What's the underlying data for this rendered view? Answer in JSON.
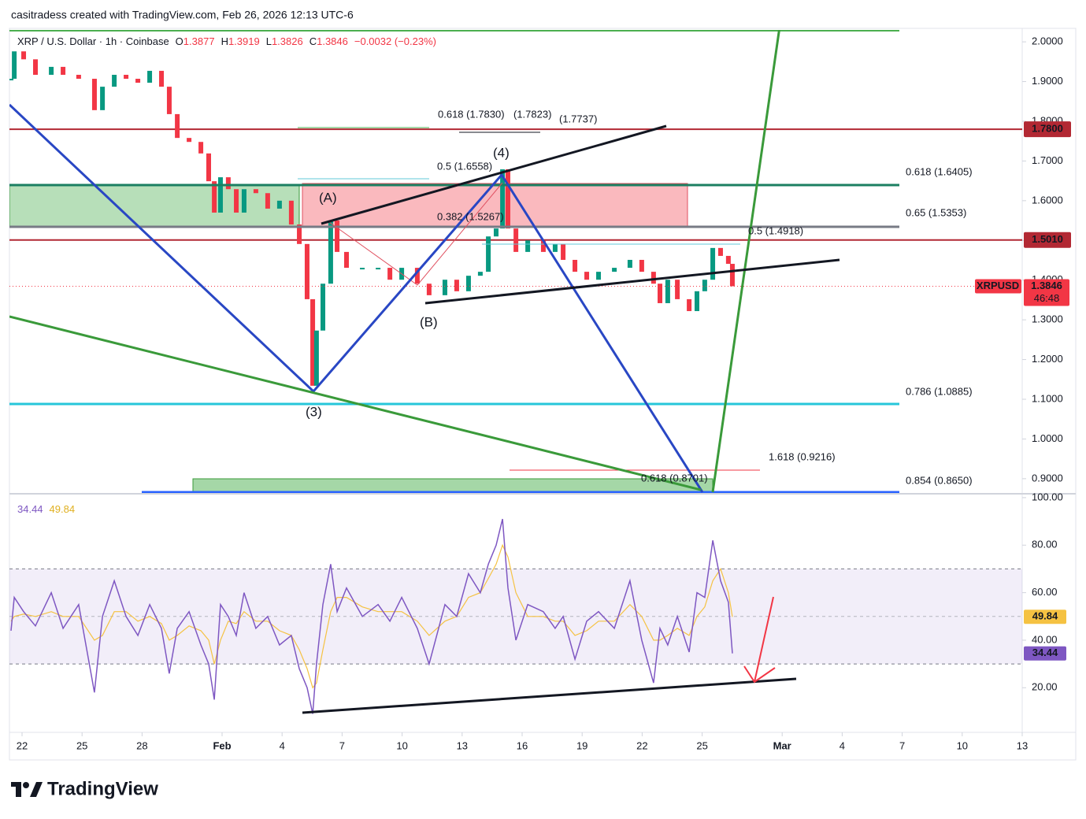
{
  "header": "casitradess created with TradingView.com, Feb 26, 2026 12:13 UTC-6",
  "brand": "TradingView",
  "chart_data": [
    {
      "type": "candlestick",
      "title": "XRP / U.S. Dollar · 1h · Coinbase",
      "ohlc_labels": [
        "O",
        "H",
        "L",
        "C"
      ],
      "ohlc": [
        1.3877,
        1.3919,
        1.3826,
        1.3846
      ],
      "change": "−0.0032 (−0.23%)",
      "symbol": "XRPUSD",
      "countdown": "46:48",
      "up_color": "#089981",
      "down_color": "#f23645",
      "x": [
        -0.55,
        -0.39,
        0.08,
        0.67,
        1.46,
        2.05,
        2.83,
        3.62,
        4.02,
        4.61,
        5.2,
        5.79,
        6.38,
        6.97,
        7.36,
        7.76,
        8.35,
        8.94,
        9.33,
        9.61,
        9.92,
        10.31,
        10.71,
        11.1,
        11.69,
        12.28,
        12.87,
        13.46,
        13.86,
        14.25,
        14.53,
        14.72,
        15.04,
        15.43,
        15.75,
        16.22,
        17.01,
        17.8,
        18.39,
        18.98,
        19.76,
        20.35,
        21.14,
        21.73,
        22.32,
        22.91,
        23.31,
        23.7,
        24.02,
        24.29,
        24.69,
        25.28,
        26.06,
        26.65,
        27.05,
        27.64,
        28.23,
        28.82,
        29.61,
        30.39,
        30.98,
        31.57,
        31.89,
        32.28,
        32.76,
        33.35,
        33.74,
        34.13,
        34.53,
        34.92,
        35.31,
        35.51
      ],
      "series": [
        {
          "values": [
            1.907,
            1.976,
            1.956,
            1.917,
            1.937,
            1.917,
            1.907,
            1.828,
            1.887,
            1.917,
            1.907,
            1.897,
            1.927,
            1.887,
            1.818,
            1.758,
            1.748,
            1.719,
            1.649,
            1.57,
            1.659,
            1.629,
            1.57,
            1.629,
            1.619,
            1.58,
            1.6,
            1.54,
            1.491,
            1.352,
            1.134,
            1.273,
            1.391,
            1.55,
            1.471,
            1.431,
            1.431,
            1.431,
            1.401,
            1.431,
            1.391,
            1.362,
            1.401,
            1.372,
            1.411,
            1.421,
            1.51,
            1.53,
            1.679,
            1.53,
            1.471,
            1.5,
            1.471,
            1.491,
            1.451,
            1.421,
            1.401,
            1.421,
            1.431,
            1.451,
            1.421,
            1.391,
            1.342,
            1.401,
            1.352,
            1.322,
            1.372,
            1.401,
            1.481,
            1.461,
            1.441,
            1.3846
          ]
        }
      ],
      "levels": [
        {
          "value": 1.78,
          "label": "1.7800",
          "color": "#b22833"
        },
        {
          "value": 1.501,
          "label": "1.5010",
          "color": "#b22833"
        }
      ],
      "xlim": [
        -0.63,
        50
      ],
      "xticks": [
        {
          "value": 0,
          "label": "22"
        },
        {
          "value": 3,
          "label": "25"
        },
        {
          "value": 6,
          "label": "28"
        },
        {
          "value": 10,
          "label": "Feb"
        },
        {
          "value": 13,
          "label": "4"
        },
        {
          "value": 16,
          "label": "7"
        },
        {
          "value": 19,
          "label": "10"
        },
        {
          "value": 22,
          "label": "13"
        },
        {
          "value": 25,
          "label": "16"
        },
        {
          "value": 28,
          "label": "19"
        },
        {
          "value": 31,
          "label": "22"
        },
        {
          "value": 34,
          "label": "25"
        },
        {
          "value": 38,
          "label": "Mar"
        },
        {
          "value": 41,
          "label": "4"
        },
        {
          "value": 44,
          "label": "7"
        },
        {
          "value": 47,
          "label": "10"
        },
        {
          "value": 50,
          "label": "13"
        }
      ],
      "ylim": [
        0.866,
        2.03
      ],
      "yticks": [
        {
          "value": 0.9,
          "label": "0.9000"
        },
        {
          "value": 1.0,
          "label": "1.0000"
        },
        {
          "value": 1.1,
          "label": "1.1000"
        },
        {
          "value": 1.2,
          "label": "1.2000"
        },
        {
          "value": 1.3,
          "label": "1.3000"
        },
        {
          "value": 1.4,
          "label": "1.4000"
        },
        {
          "value": 1.5,
          "label": "1.5000"
        },
        {
          "value": 1.6,
          "label": "1.6000"
        },
        {
          "value": 1.7,
          "label": "1.7000"
        },
        {
          "value": 1.8,
          "label": "1.8000"
        },
        {
          "value": 1.9,
          "label": "1.9000"
        },
        {
          "value": 2.0,
          "label": "2.0000"
        }
      ],
      "annotations": [
        "(A)",
        "(B)",
        "(3)",
        "(4)",
        "0.618 (1.7830)",
        "(1.7823)",
        "(1.7737)",
        "0.5 (1.6558)",
        "0.382 (1.5267)",
        "0.618 (1.6405)",
        "0.65 (1.5353)",
        "0.5 (1.4918)",
        "0.786 (1.0885)",
        "1.618 (0.9216)",
        "0.618 (0.8701)",
        "0.854 (0.8650)"
      ]
    },
    {
      "type": "line",
      "band": [
        30,
        70
      ],
      "midline": 50,
      "band_color": "#7e57c2",
      "x": [
        -0.55,
        -0.39,
        0.08,
        0.67,
        1.46,
        2.05,
        2.83,
        3.62,
        4.02,
        4.61,
        5.2,
        5.79,
        6.38,
        6.97,
        7.36,
        7.76,
        8.35,
        8.94,
        9.33,
        9.61,
        9.92,
        10.31,
        10.71,
        11.1,
        11.69,
        12.28,
        12.87,
        13.46,
        13.86,
        14.25,
        14.53,
        14.72,
        15.04,
        15.43,
        15.75,
        16.22,
        17.01,
        17.8,
        18.39,
        18.98,
        19.76,
        20.35,
        21.14,
        21.73,
        22.32,
        22.91,
        23.31,
        23.7,
        24.02,
        24.29,
        24.69,
        25.28,
        26.06,
        26.65,
        27.05,
        27.64,
        28.23,
        28.82,
        29.61,
        30.39,
        30.98,
        31.57,
        31.89,
        32.28,
        32.76,
        33.35,
        33.74,
        34.13,
        34.53,
        34.92,
        35.31,
        35.51
      ],
      "series": [
        {
          "color": "#7e57c2",
          "values": [
            44,
            58,
            52,
            46,
            60,
            45,
            55,
            18,
            50,
            65,
            50,
            42,
            55,
            45,
            26,
            45,
            52,
            38,
            30,
            15,
            55,
            50,
            42,
            60,
            45,
            50,
            38,
            42,
            28,
            20,
            9,
            30,
            55,
            72,
            52,
            62,
            50,
            55,
            48,
            58,
            45,
            30,
            55,
            50,
            68,
            60,
            72,
            80,
            91,
            62,
            40,
            55,
            52,
            45,
            50,
            32,
            48,
            52,
            45,
            65,
            40,
            22,
            45,
            38,
            50,
            35,
            60,
            58,
            82,
            65,
            56,
            34.44
          ]
        },
        {
          "color": "#f5c242",
          "values": [
            48,
            50,
            51,
            50,
            52,
            50,
            50,
            40,
            42,
            52,
            52,
            48,
            50,
            47,
            40,
            42,
            46,
            44,
            40,
            30,
            40,
            48,
            47,
            52,
            48,
            48,
            44,
            42,
            36,
            28,
            20,
            22,
            36,
            52,
            58,
            58,
            54,
            52,
            52,
            52,
            48,
            42,
            48,
            50,
            58,
            60,
            66,
            72,
            80,
            75,
            60,
            50,
            50,
            48,
            48,
            42,
            44,
            48,
            48,
            55,
            50,
            40,
            40,
            42,
            45,
            42,
            50,
            54,
            65,
            70,
            60,
            49.84
          ]
        }
      ],
      "ylim": [
        1.2,
        101.3
      ],
      "yticks": [
        {
          "value": 20,
          "label": "20.00"
        },
        {
          "value": 40,
          "label": "40.00"
        },
        {
          "value": 60,
          "label": "60.00"
        },
        {
          "value": 80,
          "label": "80.00"
        },
        {
          "value": 100,
          "label": "100.00"
        }
      ]
    }
  ]
}
